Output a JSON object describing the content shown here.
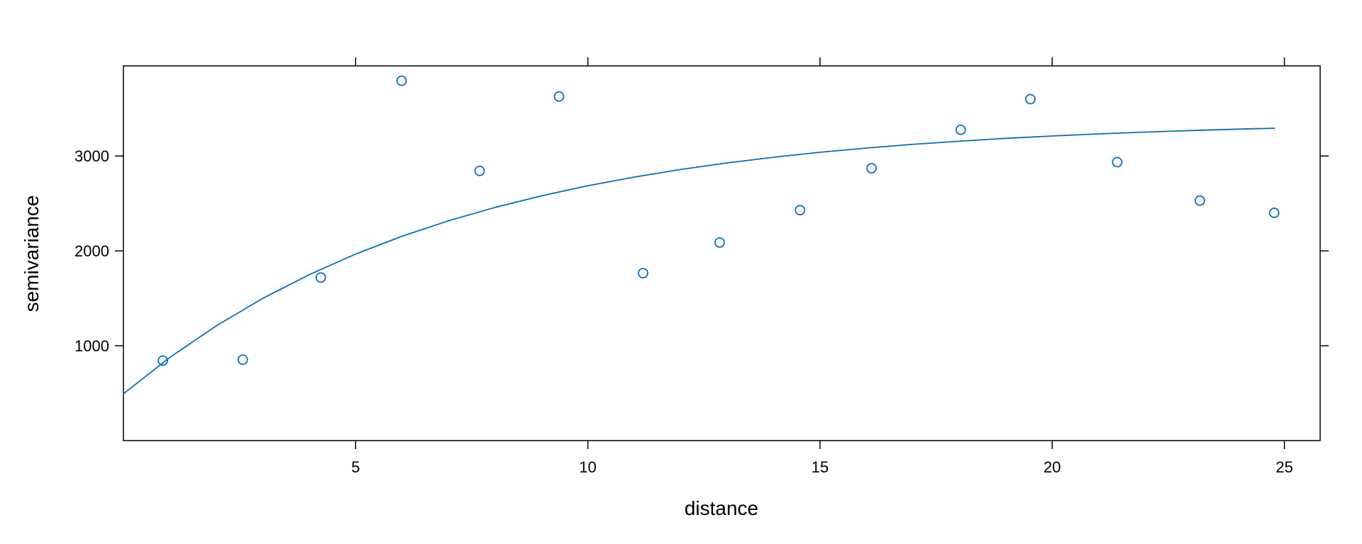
{
  "chart_data": {
    "type": "scatter",
    "xlabel": "distance",
    "ylabel": "semivariance",
    "xlim": [
      0,
      25.77
    ],
    "ylim": [
      0,
      3950
    ],
    "xticks": [
      5,
      10,
      15,
      20,
      25
    ],
    "yticks": [
      1000,
      2000,
      3000
    ],
    "series": [
      {
        "type": "scatter",
        "color": "#0072b2",
        "x": [
          0.85,
          2.57,
          4.25,
          5.99,
          7.67,
          9.38,
          11.19,
          12.84,
          14.57,
          16.11,
          18.03,
          19.53,
          21.4,
          23.18,
          24.78
        ],
        "values": [
          843,
          853,
          1719,
          3793,
          2843,
          3627,
          1765,
          2088,
          2429,
          2871,
          3276,
          3599,
          2935,
          2530,
          2401
        ]
      },
      {
        "type": "line",
        "color": "#0072b2",
        "x": [
          0,
          1,
          2,
          3,
          4,
          5,
          6,
          7,
          8,
          9,
          10,
          11,
          12,
          13,
          14,
          15,
          16,
          17,
          18,
          19,
          20,
          21,
          22,
          23,
          24,
          24.8
        ],
        "values": [
          493,
          877,
          1210,
          1499,
          1749,
          1966,
          2154,
          2317,
          2458,
          2580,
          2686,
          2778,
          2858,
          2927,
          2987,
          3039,
          3084,
          3123,
          3156,
          3186,
          3211,
          3233,
          3252,
          3268,
          3283,
          3293
        ]
      }
    ]
  }
}
